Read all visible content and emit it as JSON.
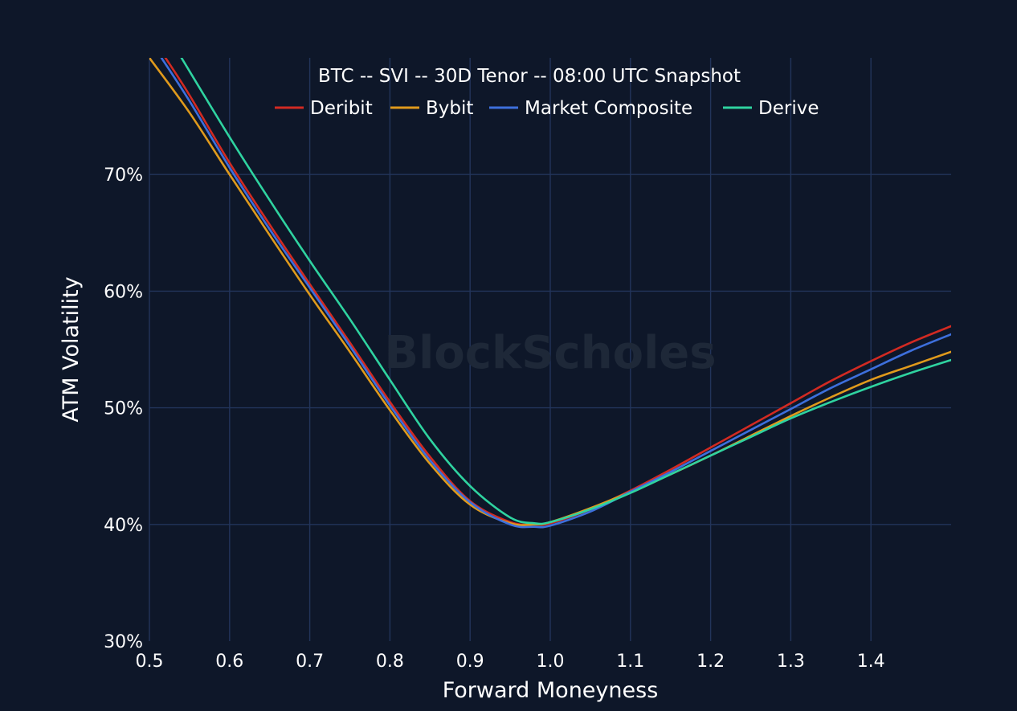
{
  "watermark": "BlockScholes",
  "chart_data": {
    "type": "line",
    "title": "BTC -- SVI -- 30D Tenor -- 08:00 UTC Snapshot",
    "xlabel": "Forward Moneyness",
    "ylabel": "ATM Volatility",
    "xlim": [
      0.5,
      1.5
    ],
    "ylim": [
      30,
      80
    ],
    "x_ticks": [
      0.5,
      0.6,
      0.7,
      0.8,
      0.9,
      1.0,
      1.1,
      1.2,
      1.3,
      1.4
    ],
    "x_tick_labels": [
      "0.5",
      "0.6",
      "0.7",
      "0.8",
      "0.9",
      "1.0",
      "1.1",
      "1.2",
      "1.3",
      "1.4"
    ],
    "y_ticks": [
      30,
      40,
      50,
      60,
      70
    ],
    "y_tick_labels": [
      "30%",
      "40%",
      "50%",
      "60%",
      "70%"
    ],
    "grid": true,
    "legend_position": "top-center",
    "series": [
      {
        "name": "Deribit",
        "color": "#d22a22",
        "x": [
          0.52,
          0.55,
          0.6,
          0.65,
          0.7,
          0.75,
          0.8,
          0.85,
          0.9,
          0.95,
          0.98,
          1.0,
          1.05,
          1.1,
          1.15,
          1.2,
          1.25,
          1.3,
          1.35,
          1.4,
          1.45,
          1.5
        ],
        "y": [
          80.0,
          76.8,
          71.0,
          65.7,
          60.6,
          55.6,
          50.5,
          45.8,
          42.0,
          40.2,
          40.0,
          40.1,
          41.3,
          42.9,
          44.7,
          46.6,
          48.5,
          50.4,
          52.3,
          54.0,
          55.6,
          57.0
        ]
      },
      {
        "name": "Bybit",
        "color": "#e09a1c",
        "x": [
          0.5,
          0.55,
          0.6,
          0.65,
          0.7,
          0.75,
          0.8,
          0.85,
          0.9,
          0.95,
          0.98,
          1.0,
          1.05,
          1.1,
          1.15,
          1.2,
          1.25,
          1.3,
          1.35,
          1.4,
          1.45,
          1.5
        ],
        "y": [
          80.0,
          75.3,
          70.0,
          64.8,
          59.7,
          54.8,
          49.8,
          45.2,
          41.7,
          40.1,
          40.0,
          40.2,
          41.4,
          42.8,
          44.3,
          45.9,
          47.6,
          49.3,
          50.9,
          52.4,
          53.6,
          54.8
        ]
      },
      {
        "name": "Market Composite",
        "color": "#3d6fdc",
        "x": [
          0.515,
          0.55,
          0.6,
          0.65,
          0.7,
          0.75,
          0.8,
          0.85,
          0.9,
          0.95,
          0.98,
          1.0,
          1.05,
          1.1,
          1.15,
          1.2,
          1.25,
          1.3,
          1.35,
          1.4,
          1.45,
          1.5
        ],
        "y": [
          80.0,
          76.3,
          70.6,
          65.3,
          60.3,
          55.3,
          50.2,
          45.5,
          41.9,
          40.0,
          39.8,
          39.9,
          41.1,
          42.8,
          44.5,
          46.3,
          48.1,
          49.9,
          51.7,
          53.3,
          54.9,
          56.3
        ]
      },
      {
        "name": "Derive",
        "color": "#2fd3a0",
        "x": [
          0.54,
          0.6,
          0.65,
          0.7,
          0.75,
          0.8,
          0.85,
          0.9,
          0.95,
          0.98,
          1.0,
          1.05,
          1.1,
          1.15,
          1.2,
          1.25,
          1.3,
          1.35,
          1.4,
          1.45,
          1.5
        ],
        "y": [
          80.0,
          73.2,
          67.8,
          62.6,
          57.6,
          52.4,
          47.3,
          43.3,
          40.6,
          40.1,
          40.2,
          41.3,
          42.7,
          44.3,
          45.9,
          47.5,
          49.1,
          50.5,
          51.8,
          53.0,
          54.1
        ]
      }
    ]
  }
}
